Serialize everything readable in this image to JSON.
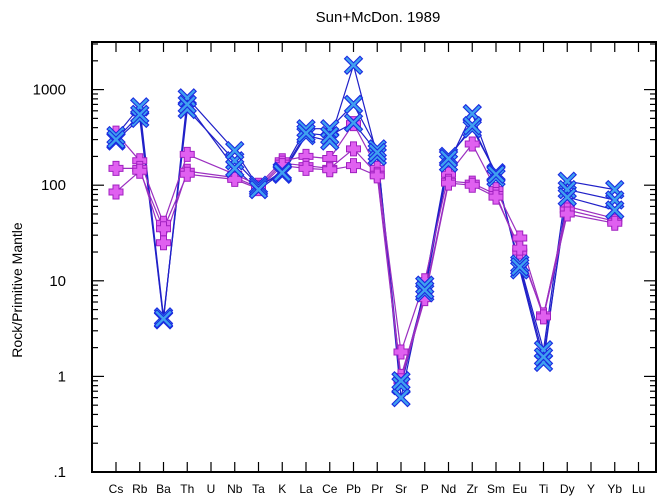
{
  "chart_data": {
    "type": "line",
    "title": "Sun+McDon. 1989",
    "xlabel": "",
    "ylabel": "Rock/Primitive Mantle",
    "yscale": "log",
    "ylim": [
      0.1,
      5000
    ],
    "ytick_labels": [
      ".1",
      "1",
      "10",
      "100",
      "1000"
    ],
    "ytick_values": [
      0.1,
      1,
      10,
      100,
      1000
    ],
    "categories": [
      "Cs",
      "Rb",
      "Ba",
      "Th",
      "U",
      "Nb",
      "Ta",
      "K",
      "La",
      "Ce",
      "Pb",
      "Pr",
      "Sr",
      "P",
      "Nd",
      "Zr",
      "Sm",
      "Eu",
      "Ti",
      "Dy",
      "Y",
      "Yb",
      "Lu"
    ],
    "grid": false,
    "colors": {
      "blue_line": "#2020c8",
      "blue_marker": "#3fa0f0",
      "blue_marker_edge": "#1a2ae0",
      "purple_line": "#9b2fc0",
      "purple_marker": "#e060f0",
      "purple_marker_edge": "#a020c0"
    },
    "series": [
      {
        "marker": "x",
        "color": "blue",
        "values": [
          330,
          660,
          4.2,
          620,
          null,
          180,
          100,
          130,
          330,
          290,
          1800,
          200,
          0.8,
          7.5,
          170,
          560,
          120,
          15,
          1.9,
          110,
          null,
          90,
          null
        ]
      },
      {
        "marker": "x",
        "color": "blue",
        "values": [
          290,
          500,
          3.9,
          820,
          null,
          230,
          95,
          140,
          390,
          390,
          700,
          240,
          0.6,
          9,
          200,
          390,
          135,
          13,
          1.4,
          90,
          null,
          70,
          null
        ]
      },
      {
        "marker": "x",
        "color": "blue",
        "values": [
          300,
          550,
          4.0,
          700,
          null,
          150,
          90,
          135,
          350,
          330,
          450,
          220,
          0.9,
          8,
          190,
          420,
          130,
          14,
          1.6,
          75,
          null,
          55,
          null
        ]
      },
      {
        "marker": "plus",
        "color": "purple",
        "values": [
          350,
          180,
          40,
          210,
          null,
          130,
          100,
          180,
          200,
          190,
          440,
          150,
          1.8,
          10,
          130,
          270,
          90,
          28,
          4.3,
          60,
          null,
          45,
          null
        ]
      },
      {
        "marker": "plus",
        "color": "purple",
        "values": [
          150,
          150,
          25,
          140,
          null,
          120,
          95,
          170,
          160,
          150,
          240,
          130,
          1.0,
          7,
          110,
          105,
          80,
          20,
          4.4,
          55,
          null,
          42,
          null
        ]
      },
      {
        "marker": "plus",
        "color": "purple",
        "values": [
          85,
          140,
          35,
          130,
          null,
          115,
          92,
          160,
          150,
          145,
          160,
          125,
          0.9,
          6.5,
          105,
          100,
          75,
          22,
          4.2,
          50,
          null,
          40,
          null
        ]
      }
    ]
  }
}
